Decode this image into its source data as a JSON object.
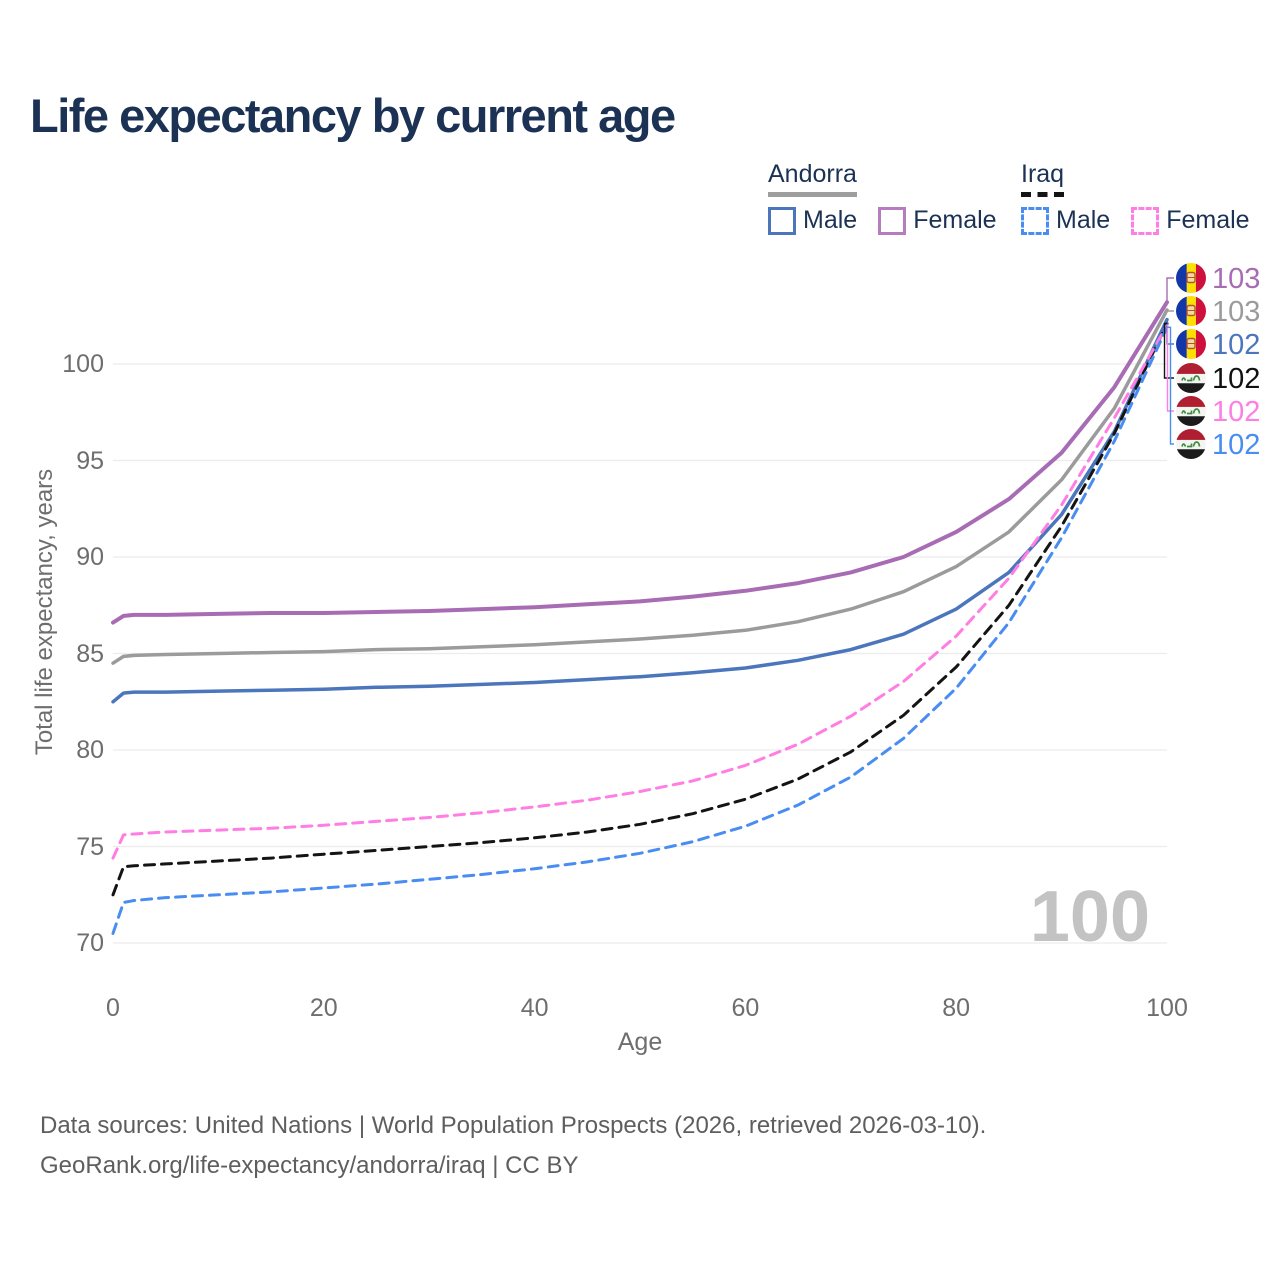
{
  "title": "Life expectancy by current age",
  "legend": {
    "groups": [
      {
        "country": "Andorra",
        "line_style": "solid",
        "underline_color": "#9e9e9e",
        "items": [
          {
            "label": "Male",
            "color": "#4b76bc"
          },
          {
            "label": "Female",
            "color": "#b57cbe"
          }
        ]
      },
      {
        "country": "Iraq",
        "line_style": "dashed",
        "underline_color": "#141414",
        "items": [
          {
            "label": "Male",
            "color": "#4a8df2"
          },
          {
            "label": "Female",
            "color": "#ff7ee4"
          }
        ]
      }
    ]
  },
  "axes": {
    "y_title": "Total life expectancy, years",
    "x_title": "Age",
    "y_ticks": [
      70,
      75,
      80,
      85,
      90,
      95,
      100
    ],
    "x_ticks": [
      0,
      20,
      40,
      60,
      80,
      100
    ]
  },
  "watermark": "100",
  "grid_color": "#ececec",
  "flag_colors": {
    "andorra": {
      "blue": "#1437a8",
      "yellow": "#fedf00",
      "red": "#d0103c",
      "crest_stroke": "#b5512f",
      "crest_fill": "#f3dc9a"
    },
    "iraq": {
      "red": "#b01f31",
      "white": "#f4f4f1",
      "black": "#1b1b1b",
      "green": "#3e8e41"
    }
  },
  "end_labels": [
    {
      "flag": "andorra",
      "text": "103",
      "color": "#a76cb3"
    },
    {
      "flag": "andorra",
      "text": "103",
      "color": "#9b9b9b"
    },
    {
      "flag": "andorra",
      "text": "102",
      "color": "#4b76bc"
    },
    {
      "flag": "iraq",
      "text": "102",
      "color": "#111111"
    },
    {
      "flag": "iraq",
      "text": "102",
      "color": "#ff7ee4"
    },
    {
      "flag": "iraq",
      "text": "102",
      "color": "#4a8df2"
    }
  ],
  "chart_data": {
    "type": "line",
    "title": "Life expectancy by current age",
    "xlabel": "Age",
    "ylabel": "Total life expectancy, years",
    "xlim": [
      0,
      100
    ],
    "ylim": [
      68.5,
      104.5
    ],
    "grid": "horizontal",
    "legend_position": "top-right",
    "x": [
      0,
      1,
      2,
      5,
      10,
      15,
      20,
      25,
      30,
      35,
      40,
      45,
      50,
      55,
      60,
      65,
      70,
      75,
      80,
      85,
      90,
      95,
      100
    ],
    "series": [
      {
        "name": "Andorra Female",
        "country": "Andorra",
        "sex": "Female",
        "color": "#a76cb3",
        "dash": false,
        "width": 4,
        "values": [
          86.6,
          86.95,
          87.0,
          87.0,
          87.05,
          87.1,
          87.1,
          87.15,
          87.2,
          87.3,
          87.4,
          87.55,
          87.7,
          87.95,
          88.25,
          88.65,
          89.2,
          90.0,
          91.3,
          93.0,
          95.4,
          98.8,
          103.2
        ],
        "end_label": "103"
      },
      {
        "name": "Andorra Both sexes",
        "country": "Andorra",
        "sex": "Both",
        "color": "#9b9b9b",
        "dash": false,
        "width": 3.5,
        "values": [
          84.5,
          84.85,
          84.9,
          84.95,
          85.0,
          85.05,
          85.1,
          85.2,
          85.25,
          85.35,
          85.45,
          85.6,
          85.75,
          85.95,
          86.2,
          86.65,
          87.3,
          88.2,
          89.5,
          91.3,
          94.0,
          97.7,
          102.8
        ],
        "end_label": "103"
      },
      {
        "name": "Andorra Male",
        "country": "Andorra",
        "sex": "Male",
        "color": "#4b76bc",
        "dash": false,
        "width": 3.5,
        "values": [
          82.5,
          82.95,
          83.0,
          83.0,
          83.05,
          83.1,
          83.15,
          83.25,
          83.3,
          83.4,
          83.5,
          83.65,
          83.8,
          84.0,
          84.25,
          84.65,
          85.2,
          86.0,
          87.3,
          89.2,
          92.2,
          96.5,
          102.3
        ],
        "end_label": "102"
      },
      {
        "name": "Iraq Both sexes",
        "country": "Iraq",
        "sex": "Both",
        "color": "#141414",
        "dash": true,
        "width": 3,
        "values": [
          72.5,
          73.95,
          74.0,
          74.1,
          74.25,
          74.4,
          74.6,
          74.8,
          75.0,
          75.2,
          75.45,
          75.75,
          76.15,
          76.7,
          77.45,
          78.5,
          79.9,
          81.8,
          84.3,
          87.5,
          91.6,
          96.4,
          102.1
        ],
        "end_label": "102"
      },
      {
        "name": "Iraq Female",
        "country": "Iraq",
        "sex": "Female",
        "color": "#ff7ee4",
        "dash": true,
        "width": 3,
        "values": [
          74.4,
          75.6,
          75.65,
          75.75,
          75.85,
          75.95,
          76.1,
          76.3,
          76.5,
          76.75,
          77.05,
          77.4,
          77.85,
          78.4,
          79.2,
          80.3,
          81.75,
          83.55,
          85.9,
          88.9,
          92.7,
          97.2,
          102.0
        ],
        "end_label": "102"
      },
      {
        "name": "Iraq Male",
        "country": "Iraq",
        "sex": "Male",
        "color": "#4a8df2",
        "dash": true,
        "width": 3,
        "values": [
          70.5,
          72.1,
          72.2,
          72.35,
          72.5,
          72.65,
          72.85,
          73.05,
          73.3,
          73.55,
          73.85,
          74.2,
          74.65,
          75.25,
          76.05,
          77.15,
          78.6,
          80.6,
          83.2,
          86.6,
          91.0,
          96.0,
          101.9
        ],
        "end_label": "102"
      }
    ]
  },
  "footer": {
    "line1": "Data sources: United Nations | World Population Prospects (2026, retrieved 2026-03-10).",
    "line2": "GeoRank.org/life-expectancy/andorra/iraq | CC BY"
  }
}
